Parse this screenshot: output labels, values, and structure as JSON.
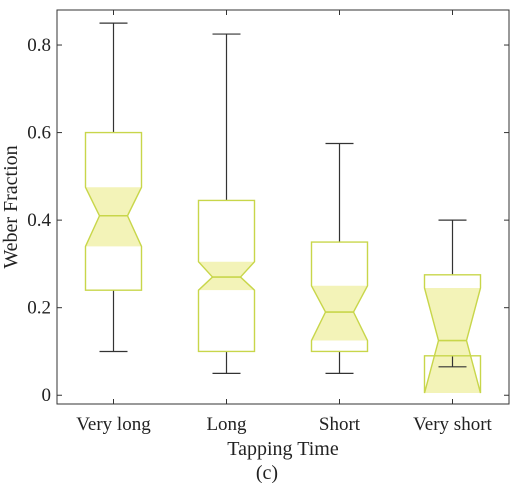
{
  "chart_data": {
    "type": "box",
    "xlabel": "Tapping Time",
    "ylabel": "Weber Fraction",
    "caption": "(c)",
    "ylim": [
      -0.02,
      0.88
    ],
    "yticks": [
      0,
      0.2,
      0.4,
      0.6,
      0.8
    ],
    "ytick_labels": [
      "0",
      "0.2",
      "0.4",
      "0.6",
      "0.8"
    ],
    "grid": false,
    "box_color": "#c8d64a",
    "notch_fill": "#f3f3b8",
    "whisker_color": "#333333",
    "categories": [
      "Very long",
      "Long",
      "Short",
      "Very short"
    ],
    "boxes": [
      {
        "label": "Very long",
        "whisker_low": 0.1,
        "q1": 0.24,
        "notch_low": 0.34,
        "median": 0.41,
        "notch_high": 0.475,
        "q3": 0.6,
        "whisker_high": 0.85
      },
      {
        "label": "Long",
        "whisker_low": 0.05,
        "q1": 0.1,
        "notch_low": 0.24,
        "median": 0.27,
        "notch_high": 0.305,
        "q3": 0.445,
        "whisker_high": 0.825
      },
      {
        "label": "Short",
        "whisker_low": 0.05,
        "q1": 0.1,
        "notch_low": 0.125,
        "median": 0.19,
        "notch_high": 0.25,
        "q3": 0.35,
        "whisker_high": 0.575
      },
      {
        "label": "Very short",
        "whisker_low": 0.065,
        "q1": 0.09,
        "notch_low": 0.005,
        "median": 0.125,
        "notch_high": 0.245,
        "q3": 0.275,
        "whisker_high": 0.4
      }
    ]
  }
}
